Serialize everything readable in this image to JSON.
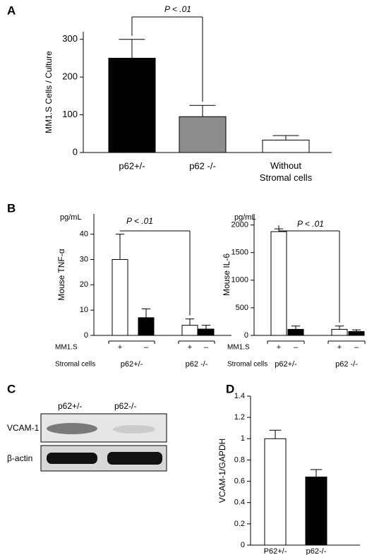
{
  "panel_labels": [
    "A",
    "B",
    "C",
    "D"
  ],
  "chart_data": [
    {
      "type": "bar",
      "ylabel": "MM1.S Cells / Culture",
      "categories": [
        "p62+/-",
        "p62 -/-",
        "Without Stromal cells"
      ],
      "values": [
        250,
        95,
        33
      ],
      "errors": [
        50,
        30,
        12
      ],
      "colors": [
        "#000000",
        "#8c8c8c",
        "#ffffff"
      ],
      "ylim": [
        0,
        320
      ],
      "yticks": [
        0,
        100,
        200,
        300
      ],
      "annotation": "P < .01"
    },
    {
      "type": "bar",
      "ylabel": "Mouse TNF-α",
      "unit": "pg/mL",
      "categories": [
        "+",
        "–",
        "+",
        "–"
      ],
      "row_labels": [
        "MM1.S",
        "Stromal cells"
      ],
      "groups": [
        "p62+/-",
        "p62 -/-"
      ],
      "values": [
        30,
        7,
        4,
        2.5
      ],
      "errors": [
        10,
        3.5,
        2.5,
        1.5
      ],
      "colors": [
        "#ffffff",
        "#000000",
        "#ffffff",
        "#000000"
      ],
      "ylim": [
        0,
        48
      ],
      "yticks": [
        0,
        10,
        20,
        30,
        40
      ],
      "annotation": "P < .01"
    },
    {
      "type": "bar",
      "ylabel": "Mouse IL-6",
      "unit": "pg/mL",
      "categories": [
        "+",
        "–",
        "+",
        "–"
      ],
      "row_labels": [
        "MM1.S",
        "Stromal cells"
      ],
      "groups": [
        "p62+/-",
        "p62 -/-"
      ],
      "values": [
        1880,
        110,
        110,
        70
      ],
      "errors": [
        50,
        60,
        60,
        30
      ],
      "colors": [
        "#ffffff",
        "#000000",
        "#ffffff",
        "#000000"
      ],
      "ylim": [
        0,
        2200
      ],
      "yticks": [
        0,
        500,
        1000,
        1500,
        2000
      ],
      "annotation": "P < .01"
    },
    {
      "type": "bar",
      "ylabel": "VCAM-1/GAPDH",
      "categories": [
        "P62+/-",
        "p62-/-"
      ],
      "values": [
        1.0,
        0.64
      ],
      "errors": [
        0.08,
        0.07
      ],
      "colors": [
        "#ffffff",
        "#000000"
      ],
      "ylim": [
        0,
        1.4
      ],
      "yticks": [
        0,
        0.2,
        0.4,
        0.6,
        0.8,
        1,
        1.2,
        1.4
      ]
    }
  ],
  "blot": {
    "lanes": [
      "p62+/-",
      "p62-/-"
    ],
    "rows": [
      "VCAM-1",
      "β-actin"
    ]
  }
}
